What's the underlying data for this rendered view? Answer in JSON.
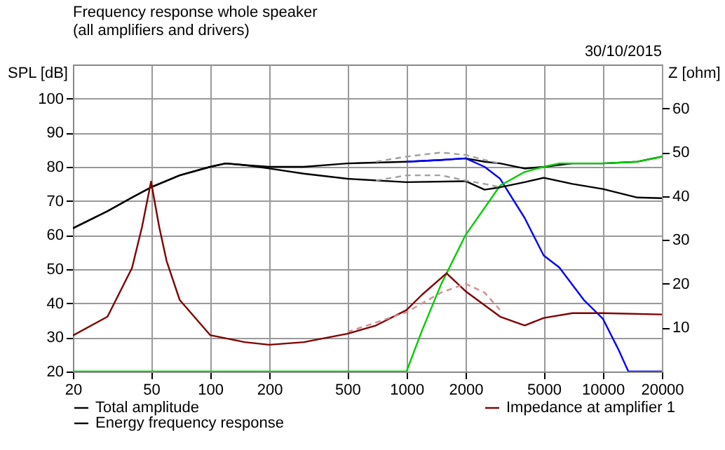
{
  "chart_data": {
    "type": "line",
    "title": "Frequency response whole speaker",
    "subtitle": "(all amplifiers and drivers)",
    "annotations": [
      "30/10/2015"
    ],
    "ylabel": "SPL [dB]",
    "y2label": "Z [ohm]",
    "log": "x",
    "xlim": [
      20,
      20000
    ],
    "xticks": [
      20,
      50,
      100,
      200,
      500,
      1000,
      2000,
      5000,
      10000,
      20000
    ],
    "ylim": [
      20,
      110
    ],
    "yticks": [
      20,
      30,
      40,
      50,
      60,
      70,
      80,
      90,
      100
    ],
    "y2lim": [
      0,
      70
    ],
    "y2ticks": [
      10,
      20,
      30,
      40,
      50,
      60
    ],
    "grid": true,
    "legend": "bottom",
    "line_style": "solid",
    "marker": "none",
    "series": [
      {
        "name": "Total amplitude",
        "color": "#000000",
        "x": [
          20,
          30,
          40,
          50,
          70,
          100,
          120,
          150,
          200,
          300,
          500,
          1000,
          1500,
          2000,
          2500,
          3000,
          4000,
          5000,
          7000,
          10000,
          15000,
          20000
        ],
        "values": [
          62,
          67,
          71,
          74,
          77.5,
          80,
          81,
          80.5,
          80,
          80,
          81,
          81.5,
          82,
          82.5,
          81.5,
          81,
          79.5,
          80,
          81,
          81,
          81.5,
          83
        ]
      },
      {
        "color": "#0000ff",
        "x": [
          1000,
          1500,
          2000,
          2500,
          3000,
          4000,
          5000,
          6000,
          8000,
          10000,
          12000,
          13500,
          20000
        ],
        "values": [
          81.5,
          82,
          82.5,
          80,
          76.5,
          65,
          54,
          50.5,
          41,
          35.5,
          26.5,
          20,
          20
        ]
      },
      {
        "color": "#00cc00",
        "x": [
          20,
          1000,
          1200,
          1500,
          2000,
          3000,
          4000,
          5000,
          6000,
          8000,
          10000,
          15000,
          20000
        ],
        "values": [
          20,
          20,
          32,
          45.5,
          60,
          74.5,
          78.5,
          80,
          81,
          81,
          81,
          81.5,
          83
        ]
      },
      {
        "name": "Impedance at amplifier 1",
        "color": "#800000",
        "axis": "y2",
        "x": [
          20,
          30,
          40,
          45,
          50,
          55,
          60,
          70,
          100,
          150,
          200,
          300,
          500,
          700,
          1000,
          1200,
          1600,
          2000,
          3000,
          4000,
          5000,
          7000,
          10000,
          20000
        ],
        "values": [
          8.2,
          12.5,
          23.6,
          33,
          43.3,
          33,
          25.2,
          16.3,
          8.3,
          6.7,
          6.1,
          6.7,
          8.6,
          10.5,
          14,
          17.5,
          22.4,
          18.3,
          12.5,
          10.5,
          12.2,
          13.3,
          13.3,
          13
        ]
      },
      {
        "name": "Energy frequency response",
        "color": "#000000",
        "x": [
          20,
          30,
          40,
          50,
          70,
          100,
          120,
          150,
          200,
          300,
          500,
          1000,
          2000,
          2500,
          3000,
          4000,
          5000,
          7000,
          10000,
          15000,
          20000
        ],
        "values": [
          62,
          67,
          71,
          74,
          77.5,
          80,
          81,
          80.5,
          79.5,
          78,
          76.5,
          75.5,
          75.8,
          73.3,
          74,
          75.5,
          76.8,
          75,
          73.5,
          71,
          70.8
        ]
      },
      {
        "color": "#a0a0a0",
        "line_style": "dashed",
        "x": [
          700,
          1000,
          1500,
          2000,
          2500,
          3000
        ],
        "values": [
          81.5,
          83,
          84.2,
          83.5,
          82,
          81
        ]
      },
      {
        "color": "#a0a0a0",
        "line_style": "dashed",
        "x": [
          700,
          1000,
          1500,
          2000,
          2500,
          3000
        ],
        "values": [
          76,
          77.5,
          77.5,
          76,
          75,
          74
        ]
      },
      {
        "color": "#d09090",
        "line_style": "dashed",
        "axis": "y2",
        "x": [
          500,
          1000,
          1500,
          2000,
          2500,
          3000
        ],
        "values": [
          9,
          13.5,
          18,
          20,
          18,
          14
        ]
      }
    ]
  }
}
